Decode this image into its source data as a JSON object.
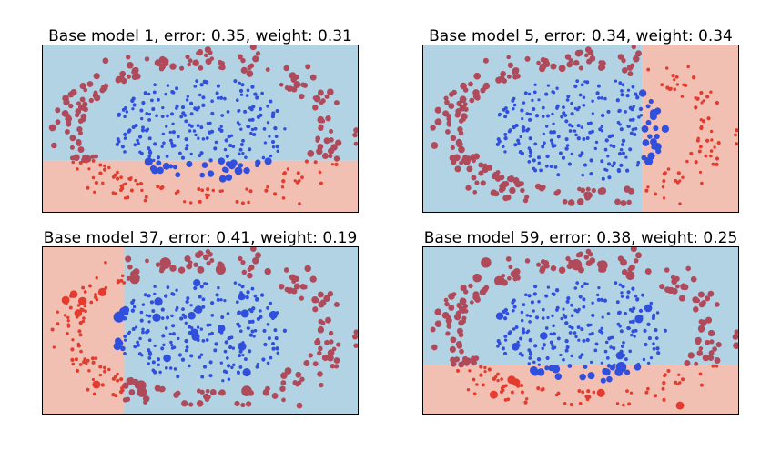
{
  "colors": {
    "region_negative": "#b1d3e4",
    "region_positive": "#f1c0b3",
    "class_negative": "#2f4fdc",
    "class_positive": "#e53b2f",
    "misclassified": "#b04a5a",
    "frame": "#000000"
  },
  "chart_data": [
    {
      "type": "scatter",
      "title": "Base model 1, error: 0.35, weight: 0.31",
      "xlabel": "",
      "ylabel": "",
      "xlim": [
        -1.0,
        1.0
      ],
      "ylim": [
        -1.0,
        1.0
      ],
      "grid": false,
      "decision_rule": {
        "feature": "y",
        "threshold": -0.38,
        "positive_side": "below"
      }
    },
    {
      "type": "scatter",
      "title": "Base model 5, error: 0.34, weight: 0.34",
      "xlabel": "",
      "ylabel": "",
      "xlim": [
        -1.0,
        1.0
      ],
      "ylim": [
        -1.0,
        1.0
      ],
      "grid": false,
      "decision_rule": {
        "feature": "x",
        "threshold": 0.39,
        "positive_side": "right"
      }
    },
    {
      "type": "scatter",
      "title": "Base model 37, error: 0.41, weight: 0.19",
      "xlabel": "",
      "ylabel": "",
      "xlim": [
        -1.0,
        1.0
      ],
      "ylim": [
        -1.0,
        1.0
      ],
      "grid": false,
      "decision_rule": {
        "feature": "x",
        "threshold": -0.48,
        "positive_side": "left"
      }
    },
    {
      "type": "scatter",
      "title": "Base model 59, error: 0.38, weight: 0.25",
      "xlabel": "",
      "ylabel": "",
      "xlim": [
        -1.0,
        1.0
      ],
      "ylim": [
        -1.0,
        1.0
      ],
      "grid": false,
      "decision_rule": {
        "feature": "y",
        "threshold": -0.41,
        "positive_side": "below"
      }
    }
  ]
}
